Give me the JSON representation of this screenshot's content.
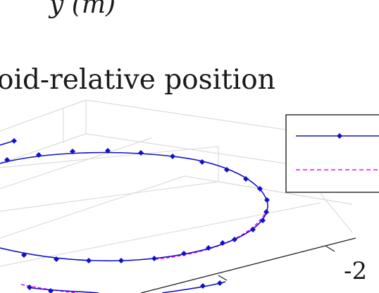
{
  "chart_data": {
    "type": "line",
    "projection": "3d",
    "title_fragment": "oid-relative position",
    "axis_label_fragment": "y (m)",
    "visible_tick_labels": [
      "-2"
    ],
    "grid": true,
    "legend": {
      "placement": "right",
      "entries": [
        {
          "style": "solid-with-diamond-markers",
          "color": "#1010c8"
        },
        {
          "style": "dashed",
          "color": "#ff00ff"
        }
      ]
    },
    "colors": {
      "series_1": "#1010c8",
      "series_2": "#ff00ff",
      "grid": "#dddddd",
      "axis": "#222222"
    }
  }
}
